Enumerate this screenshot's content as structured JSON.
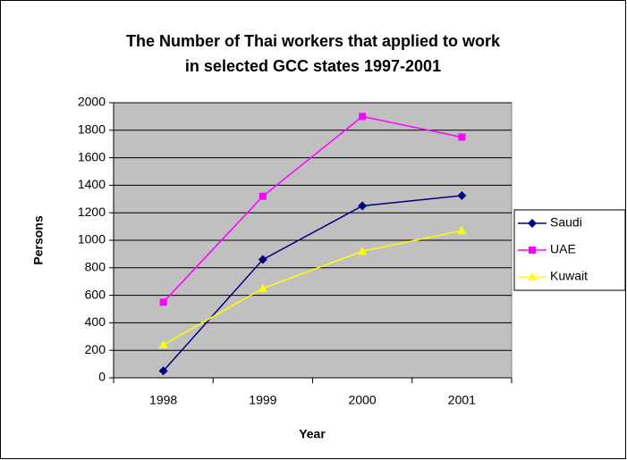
{
  "chart_data": {
    "type": "line",
    "title": [
      "The Number of Thai workers that applied to work",
      "in selected GCC states  1997-2001"
    ],
    "x_label": "Year",
    "y_label": "Persons",
    "categories": [
      "1998",
      "1999",
      "2000",
      "2001"
    ],
    "series": [
      {
        "name": "Saudi",
        "color": "#000080",
        "marker": "diamond",
        "values": [
          50,
          860,
          1250,
          1325
        ]
      },
      {
        "name": "UAE",
        "color": "#ff00ff",
        "marker": "square",
        "values": [
          550,
          1320,
          1900,
          1750
        ]
      },
      {
        "name": "Kuwait",
        "color": "#ffff00",
        "marker": "triangle",
        "values": [
          240,
          650,
          920,
          1070
        ]
      }
    ],
    "ylim": [
      0,
      2000
    ],
    "yticks": [
      0,
      200,
      400,
      600,
      800,
      1000,
      1200,
      1400,
      1600,
      1800,
      2000
    ],
    "grid": true,
    "legend": "right"
  }
}
